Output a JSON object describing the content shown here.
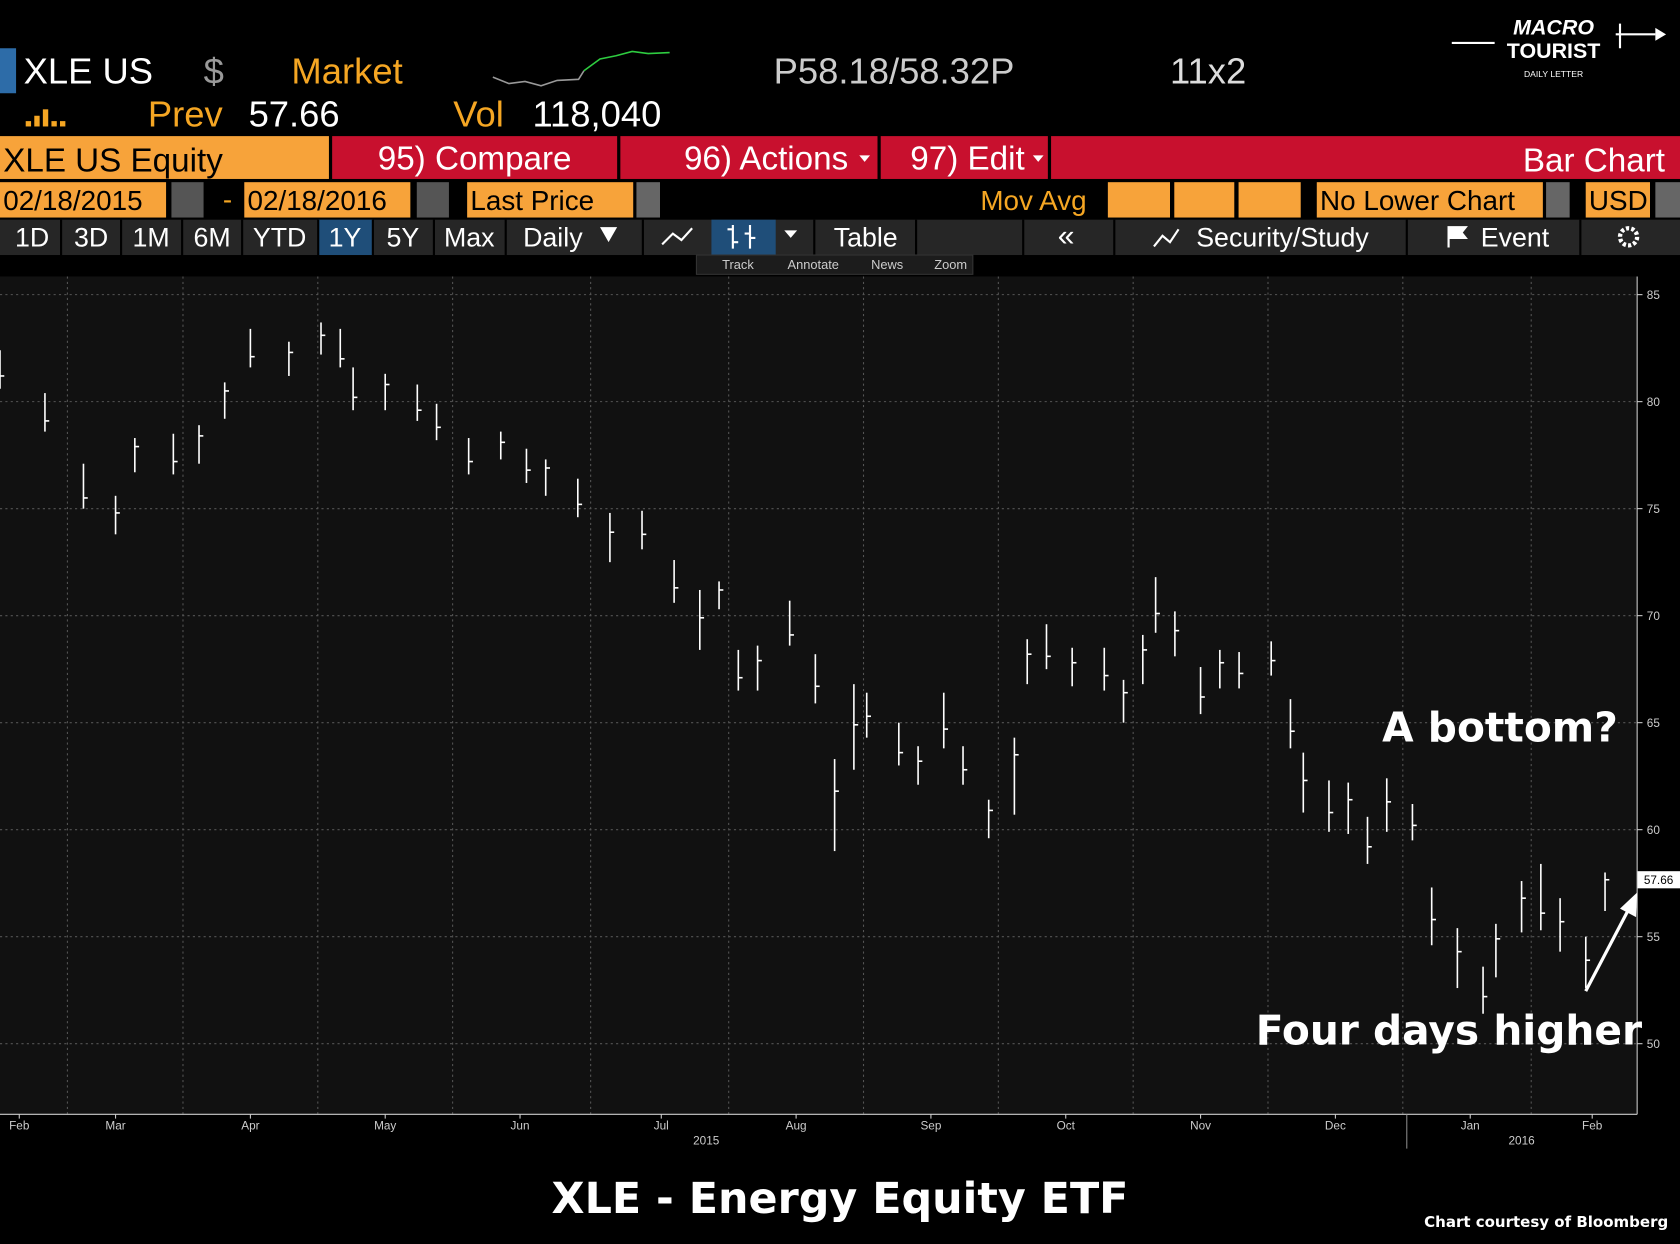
{
  "header": {
    "ticker": "XLE US",
    "currency": "$",
    "market": "Market",
    "quote": "P58.18/58.32P",
    "size": "11x2",
    "prev_label": "Prev",
    "prev": "57.66",
    "vol_label": "Vol",
    "vol": "118,040"
  },
  "logo": {
    "line1": "MACRO",
    "line2": "TOURIST",
    "line3": "DAILY LETTER"
  },
  "menu": {
    "security": "XLE US Equity",
    "compare": "95) Compare",
    "actions": "96) Actions",
    "edit": "97) Edit",
    "chart_kind": "Bar Chart"
  },
  "controls": {
    "start": "02/18/2015",
    "dash": "-",
    "end": "02/18/2016",
    "field": "Last Price",
    "mov_avg": "Mov Avg",
    "lower": "No Lower Chart",
    "ccy": "USD"
  },
  "tabs": {
    "periods": [
      "1D",
      "3D",
      "1M",
      "6M",
      "YTD",
      "1Y",
      "5Y",
      "Max"
    ],
    "selected": 5,
    "freq": "Daily",
    "table": "Table",
    "study": "Security/Study",
    "event": "Event"
  },
  "minibar": [
    "Track",
    "Annotate",
    "News",
    "Zoom"
  ],
  "chart_data": {
    "type": "ohlc",
    "title": "XLE - Energy Equity ETF",
    "credit": "Chart courtesy of Bloomberg",
    "color": "#ffffff",
    "annotations": [
      "A bottom?",
      "Four days higher"
    ],
    "x": [
      0,
      7,
      13,
      18,
      21,
      27,
      31,
      35,
      39,
      45,
      50,
      53,
      55,
      60,
      65,
      68,
      73,
      78,
      82,
      85,
      90,
      95,
      100,
      105,
      109,
      112,
      115,
      118,
      123,
      127,
      130,
      133,
      135,
      140,
      143,
      147,
      150,
      154,
      158,
      160,
      163,
      167,
      172,
      175,
      178,
      180,
      183,
      187,
      190,
      193,
      198,
      201,
      203,
      207,
      210,
      213,
      216,
      220,
      223,
      227,
      231,
      233,
      237,
      240,
      243,
      247,
      250
    ],
    "high": [
      82.4,
      80.4,
      77.1,
      75.6,
      78.3,
      78.5,
      78.9,
      80.9,
      83.4,
      82.8,
      83.7,
      83.4,
      81.6,
      81.3,
      80.8,
      79.9,
      78.3,
      78.6,
      77.8,
      77.3,
      76.4,
      74.8,
      74.9,
      72.6,
      71.2,
      71.6,
      68.4,
      68.6,
      70.7,
      68.2,
      63.3,
      66.8,
      66.4,
      65.0,
      63.9,
      66.4,
      63.9,
      61.4,
      64.3,
      68.9,
      69.6,
      68.5,
      68.5,
      67.0,
      69.1,
      71.8,
      70.2,
      67.6,
      68.4,
      68.3,
      68.8,
      66.1,
      63.6,
      62.3,
      62.2,
      60.6,
      62.4,
      61.2,
      57.3,
      55.4,
      53.6,
      55.6,
      57.6,
      58.4,
      56.8,
      55.0,
      58.0
    ],
    "low": [
      80.6,
      78.6,
      75.0,
      73.8,
      76.7,
      76.6,
      77.1,
      79.2,
      81.6,
      81.2,
      82.2,
      81.6,
      79.6,
      79.6,
      79.1,
      78.2,
      76.6,
      77.3,
      76.2,
      75.6,
      74.6,
      72.5,
      73.1,
      70.6,
      68.4,
      70.3,
      66.5,
      66.5,
      68.6,
      65.9,
      59.0,
      62.8,
      64.3,
      63.0,
      62.1,
      63.8,
      62.1,
      59.6,
      60.7,
      66.8,
      67.5,
      66.7,
      66.5,
      65.0,
      66.8,
      69.2,
      68.1,
      65.4,
      66.6,
      66.6,
      67.2,
      63.8,
      60.8,
      59.9,
      59.8,
      58.4,
      59.9,
      59.5,
      54.6,
      52.6,
      51.4,
      53.1,
      55.2,
      55.3,
      54.3,
      52.6,
      56.2
    ],
    "close": [
      81.2,
      79.1,
      75.5,
      74.8,
      77.9,
      77.2,
      78.4,
      80.5,
      82.1,
      82.3,
      83.1,
      82.0,
      80.2,
      80.8,
      79.6,
      78.8,
      77.2,
      78.1,
      76.8,
      76.9,
      75.2,
      73.9,
      73.8,
      71.3,
      69.9,
      71.2,
      67.1,
      67.9,
      69.1,
      66.7,
      61.8,
      64.9,
      65.3,
      63.6,
      63.2,
      64.7,
      62.8,
      60.9,
      63.5,
      68.2,
      68.1,
      67.8,
      67.2,
      66.4,
      68.4,
      70.1,
      69.3,
      66.2,
      67.8,
      67.3,
      67.9,
      64.6,
      62.3,
      60.8,
      61.4,
      59.2,
      61.3,
      60.2,
      55.8,
      54.3,
      52.2,
      54.9,
      56.8,
      56.1,
      55.7,
      53.9,
      57.66
    ],
    "xlim": [
      0,
      255
    ],
    "xticks": [
      {
        "value": 3,
        "label": "Feb"
      },
      {
        "value": 18,
        "label": "Mar"
      },
      {
        "value": 39,
        "label": "Apr"
      },
      {
        "value": 60,
        "label": "May"
      },
      {
        "value": 81,
        "label": "Jun"
      },
      {
        "value": 103,
        "label": "Jul"
      },
      {
        "value": 124,
        "label": "Aug"
      },
      {
        "value": 145,
        "label": "Sep"
      },
      {
        "value": 166,
        "label": "Oct"
      },
      {
        "value": 187,
        "label": "Nov"
      },
      {
        "value": 208,
        "label": "Dec"
      },
      {
        "value": 229,
        "label": "Jan"
      },
      {
        "value": 248,
        "label": "Feb"
      }
    ],
    "year_labels": [
      {
        "value": 110,
        "label": "2015"
      },
      {
        "value": 237,
        "label": "2016"
      }
    ],
    "ylim": [
      46.7,
      86.6
    ],
    "yticks": [
      50,
      55,
      60,
      65,
      70,
      75,
      80,
      85
    ],
    "grid": true
  }
}
